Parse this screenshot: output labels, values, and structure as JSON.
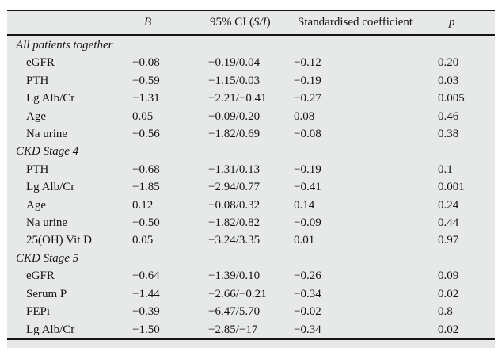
{
  "table": {
    "headers": {
      "label": "",
      "b": "B",
      "ci_prefix": "95% CI (",
      "ci_italic": "S/I",
      "ci_suffix": ")",
      "std": "Standardised coefficient",
      "p": "p"
    },
    "sections": [
      {
        "title": "All patients together",
        "rows": [
          {
            "label": "eGFR",
            "b": "−0.08",
            "ci": "−0.19/0.04",
            "std": "−0.12",
            "p": "0.20"
          },
          {
            "label": "PTH",
            "b": "−0.59",
            "ci": "−1.15/0.03",
            "std": "−0.19",
            "p": "0.03"
          },
          {
            "label": "Lg Alb/Cr",
            "b": "−1.31",
            "ci": "−2.21/−0.41",
            "std": "−0.27",
            "p": "0.005"
          },
          {
            "label": "Age",
            "b": "0.05",
            "ci": "−0.09/0.20",
            "std": "0.08",
            "p": "0.46"
          },
          {
            "label": "Na urine",
            "b": "−0.56",
            "ci": "−1.82/0.69",
            "std": "−0.08",
            "p": "0.38"
          }
        ]
      },
      {
        "title": "CKD Stage 4",
        "rows": [
          {
            "label": "PTH",
            "b": "−0.68",
            "ci": "−1.31/0.13",
            "std": "−0.19",
            "p": "0.1"
          },
          {
            "label": "Lg Alb/Cr",
            "b": "−1.85",
            "ci": "−2.94/0.77",
            "std": "−0.41",
            "p": "0.001"
          },
          {
            "label": "Age",
            "b": "0.12",
            "ci": "−0.08/0.32",
            "std": "0.14",
            "p": "0.24"
          },
          {
            "label": "Na urine",
            "b": "−0.50",
            "ci": "−1.82/0.82",
            "std": "−0.09",
            "p": "0.44"
          },
          {
            "label": "25(OH) Vit D",
            "b": "0.05",
            "ci": "−3.24/3.35",
            "std": "0.01",
            "p": "0.97"
          }
        ]
      },
      {
        "title": "CKD Stage 5",
        "rows": [
          {
            "label": "eGFR",
            "b": "−0.64",
            "ci": "−1.39/0.10",
            "std": "−0.26",
            "p": "0.09"
          },
          {
            "label": "Serum P",
            "b": "−1.44",
            "ci": "−2.66/−0.21",
            "std": "−0.34",
            "p": "0.02"
          },
          {
            "label": "FEPi",
            "b": "−0.39",
            "ci": "−6.47/5.70",
            "std": "−0.02",
            "p": "0.8"
          },
          {
            "label": "Lg Alb/Cr",
            "b": "−1.50",
            "ci": "−2.85/−17",
            "std": "−0.34",
            "p": "0.02"
          }
        ]
      }
    ]
  },
  "colors": {
    "page_bg": "#ffffff",
    "panel_bg": "#e6e9e8",
    "rule": "#141414",
    "text": "#141414"
  }
}
